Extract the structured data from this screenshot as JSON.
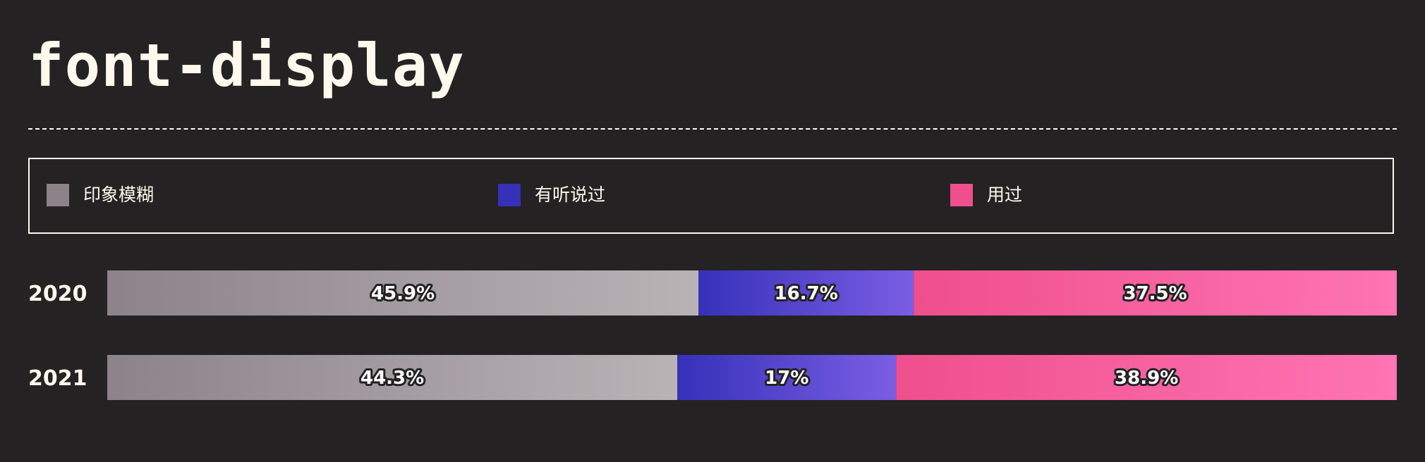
{
  "title": "font-display",
  "chart_data": {
    "type": "bar",
    "orientation": "horizontal",
    "stacked": true,
    "normalized": true,
    "categories": [
      "2020",
      "2021"
    ],
    "series": [
      {
        "name": "印象模糊",
        "values": [
          45.9,
          44.3
        ],
        "labels": [
          "45.9%",
          "44.3%"
        ],
        "color": "#8c8389",
        "color_end": "#b9b3b6"
      },
      {
        "name": "有听说过",
        "values": [
          16.7,
          17
        ],
        "labels": [
          "16.7%",
          "17%"
        ],
        "color": "#3631b9",
        "color_end": "#7a5ee4"
      },
      {
        "name": "用过",
        "values": [
          37.5,
          38.9
        ],
        "labels": [
          "37.5%",
          "38.9%"
        ],
        "color": "#ef4f8c",
        "color_end": "#ff74b4"
      }
    ],
    "xlim": [
      0,
      100
    ],
    "legend_position": "top",
    "grid": false
  }
}
